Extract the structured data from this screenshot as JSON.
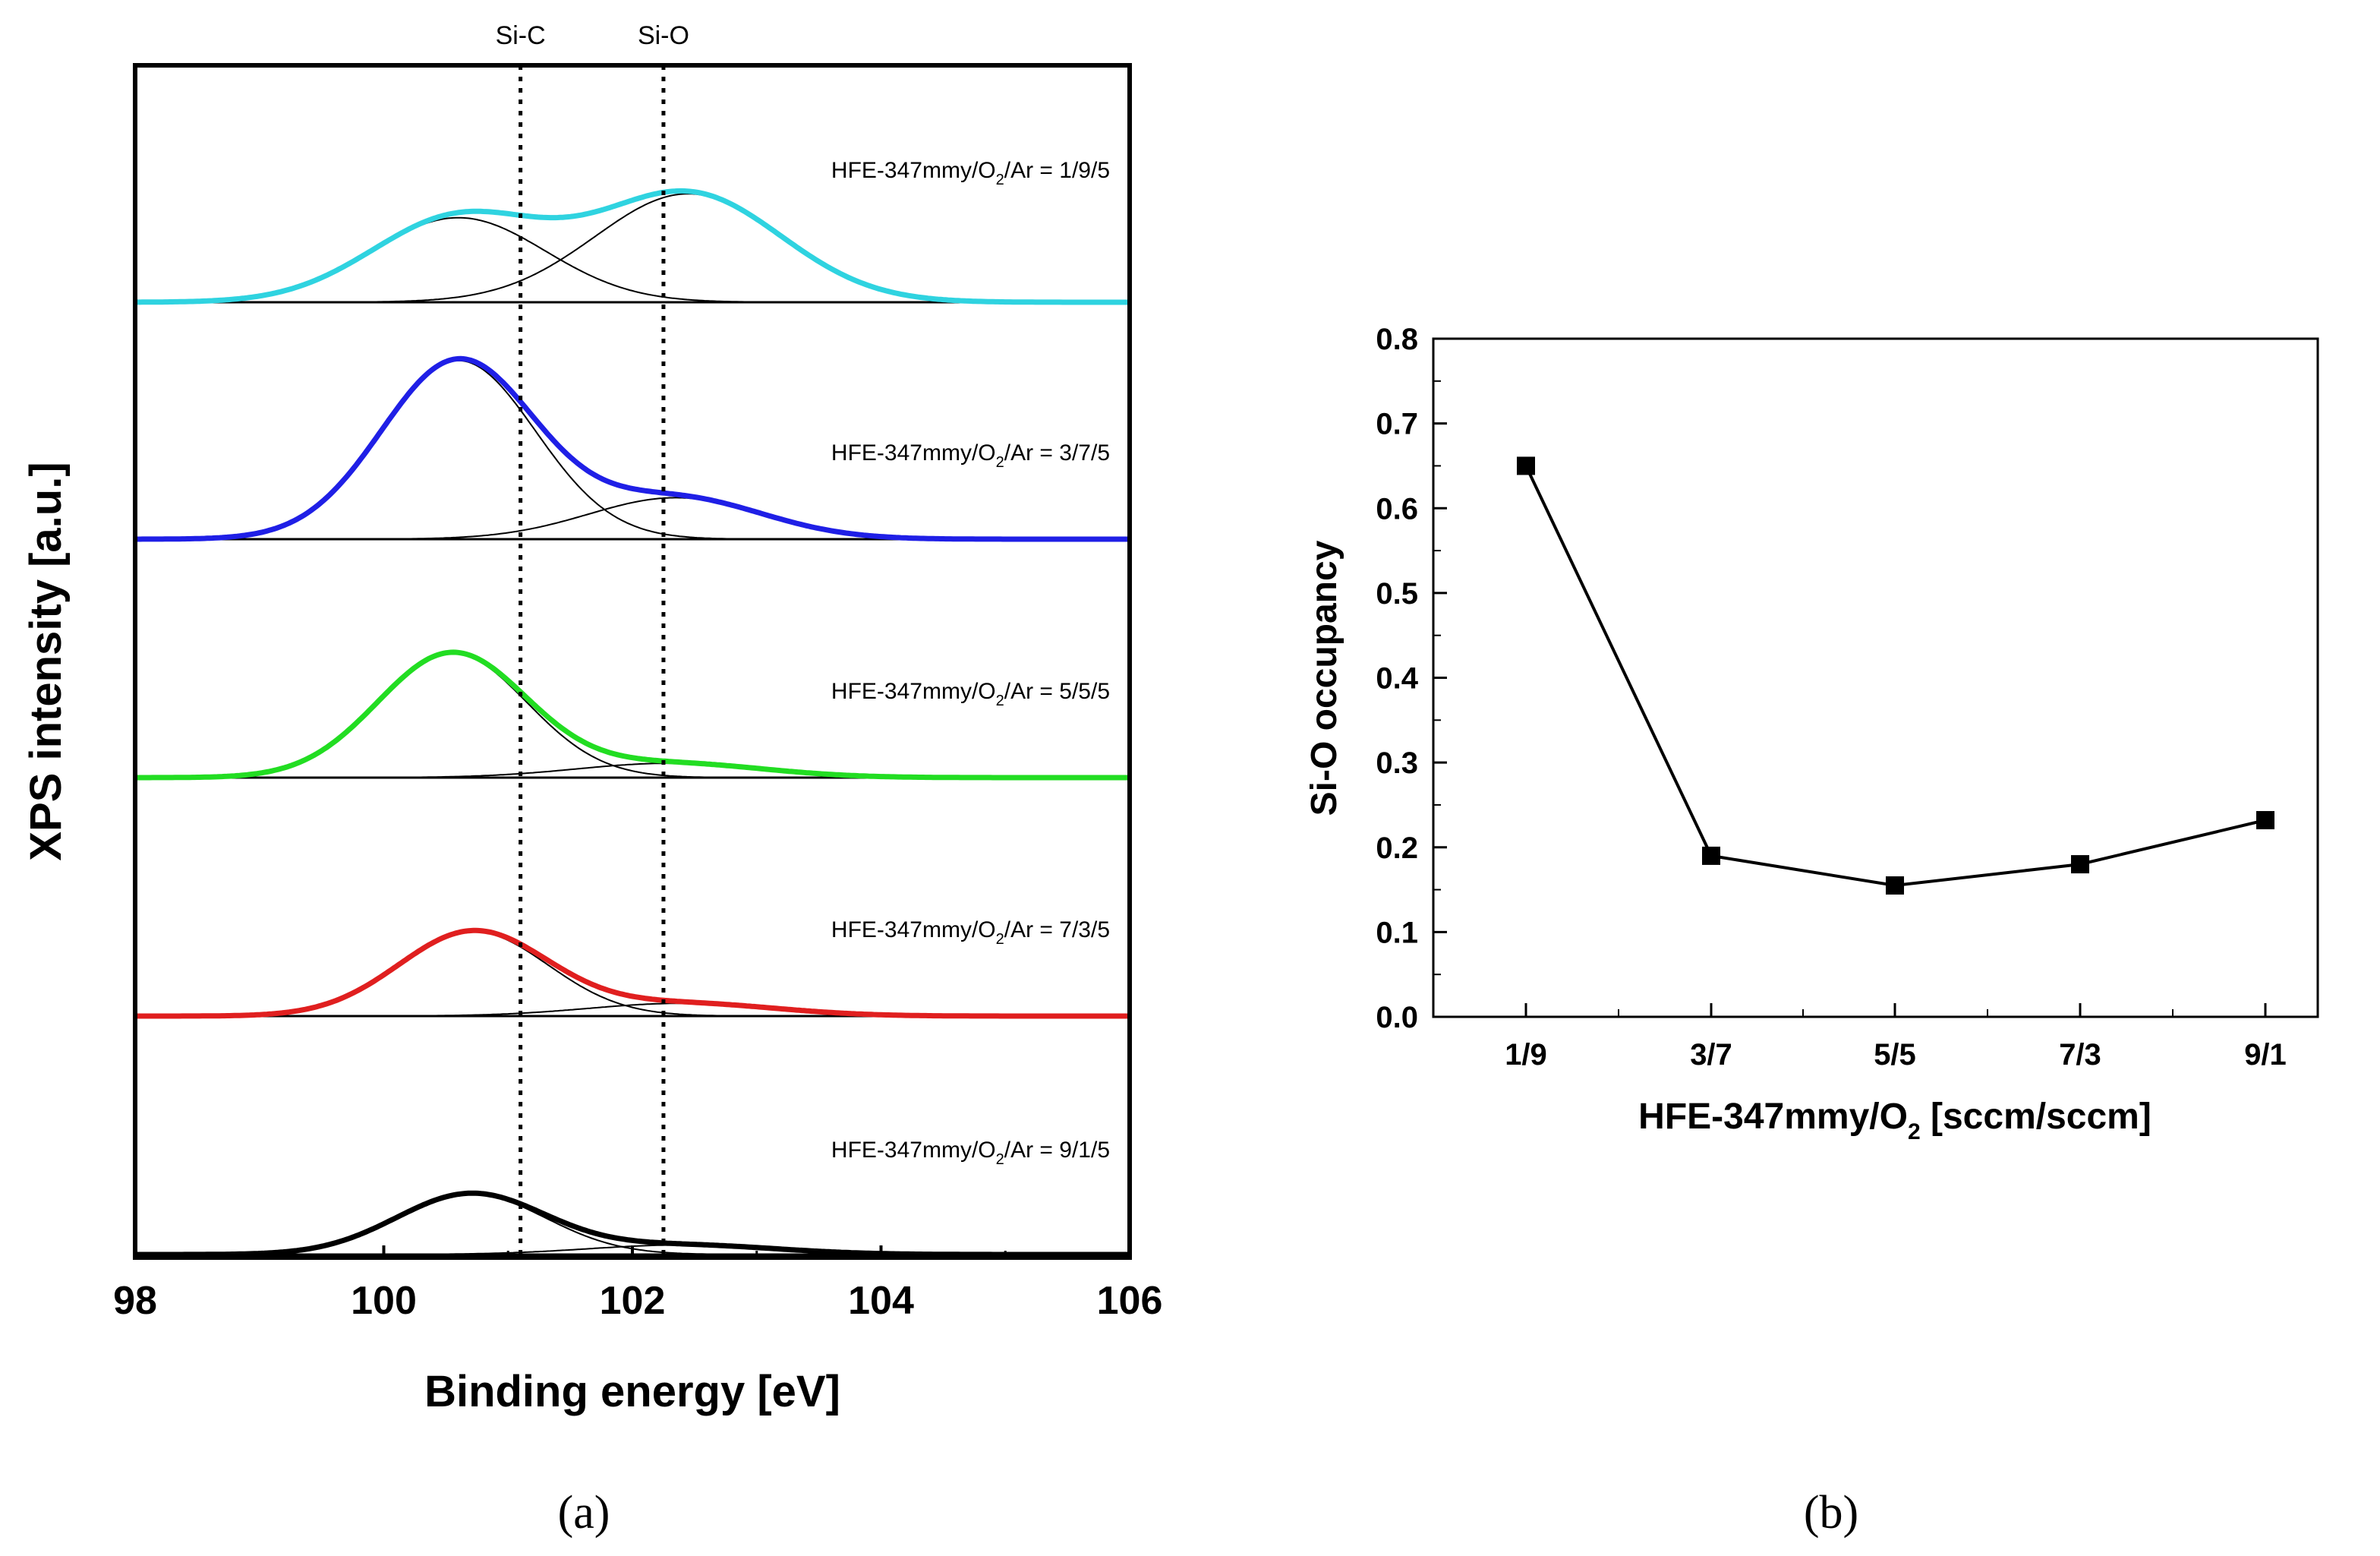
{
  "chart_data": [
    {
      "panel": "(a)",
      "type": "line",
      "xlabel": "Binding energy [eV]",
      "ylabel": "XPS intensity [a.u.]",
      "xlim": [
        98,
        106
      ],
      "x_ticks": [
        "98",
        "100",
        "102",
        "104",
        "106"
      ],
      "y_ticks": [],
      "grid": false,
      "reference_lines": [
        {
          "label": "Si-C",
          "x": 101.1
        },
        {
          "label": "Si-O",
          "x": 102.25
        }
      ],
      "spectra": [
        {
          "label_parts": [
            "HFE-347mmy/O",
            "2",
            "/Ar = 1/9/5"
          ],
          "color": "#2fd3e0",
          "components": [
            {
              "center": 100.6,
              "amplitude": 0.53,
              "sigma": 0.7
            },
            {
              "center": 102.45,
              "amplitude": 0.68,
              "sigma": 0.75
            }
          ]
        },
        {
          "label_parts": [
            "HFE-347mmy/O",
            "2",
            "/Ar = 3/7/5"
          ],
          "color": "#1f1fe6",
          "components": [
            {
              "center": 100.6,
              "amplitude": 1.12,
              "sigma": 0.62
            },
            {
              "center": 102.35,
              "amplitude": 0.26,
              "sigma": 0.7
            }
          ]
        },
        {
          "label_parts": [
            "HFE-347mmy/O",
            "2",
            "/Ar = 5/5/5"
          ],
          "color": "#22dd22",
          "components": [
            {
              "center": 100.55,
              "amplitude": 0.78,
              "sigma": 0.6
            },
            {
              "center": 102.3,
              "amplitude": 0.09,
              "sigma": 0.75
            }
          ]
        },
        {
          "label_parts": [
            "HFE-347mmy/O",
            "2",
            "/Ar = 7/3/5"
          ],
          "color": "#e01f1f",
          "components": [
            {
              "center": 100.72,
              "amplitude": 0.53,
              "sigma": 0.6
            },
            {
              "center": 102.4,
              "amplitude": 0.08,
              "sigma": 0.75
            }
          ]
        },
        {
          "label_parts": [
            "HFE-347mmy/O",
            "2",
            "/Ar = 9/1/5"
          ],
          "color": "#000000",
          "components": [
            {
              "center": 100.7,
              "amplitude": 0.38,
              "sigma": 0.6
            },
            {
              "center": 102.4,
              "amplitude": 0.06,
              "sigma": 0.75
            }
          ]
        }
      ]
    },
    {
      "panel": "(b)",
      "type": "line",
      "xlabel_parts": [
        "HFE-347mmy/O",
        "2",
        " [sccm/sccm]"
      ],
      "ylabel": "Si-O occupancy",
      "categories": [
        "1/9",
        "3/7",
        "5/5",
        "7/3",
        "9/1"
      ],
      "ylim": [
        0.0,
        0.8
      ],
      "y_ticks": [
        "0.0",
        "0.1",
        "0.2",
        "0.3",
        "0.4",
        "0.5",
        "0.6",
        "0.7",
        "0.8"
      ],
      "grid": false,
      "series": [
        {
          "values": [
            0.65,
            0.19,
            0.155,
            0.18,
            0.232
          ],
          "marker": "square",
          "color": "#000000"
        }
      ]
    }
  ]
}
